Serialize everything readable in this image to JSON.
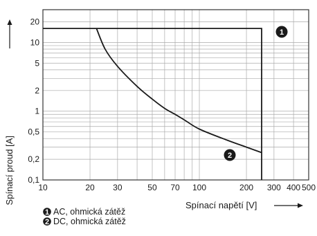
{
  "chart_data": {
    "type": "line",
    "title": "",
    "xlabel": "Spínací napětí [V]",
    "ylabel": "Spínací proud [A]",
    "x_scale": "log",
    "y_scale": "log",
    "xlim": [
      10,
      500
    ],
    "ylim": [
      0.1,
      30
    ],
    "x_ticks": [
      10,
      20,
      30,
      50,
      70,
      100,
      200,
      300,
      400,
      500
    ],
    "x_tick_labels": [
      "10",
      "20",
      "30",
      "50",
      "70",
      "100",
      "200",
      "300",
      "400",
      "500"
    ],
    "y_ticks": [
      0.1,
      0.2,
      0.5,
      1,
      2,
      5,
      10,
      20
    ],
    "y_tick_labels": [
      "0,1",
      "0,2",
      "0,5",
      "1",
      "2",
      "5",
      "10",
      "20"
    ],
    "grid": true,
    "colors": {
      "grid": "#aaaaaa",
      "frame": "#333333",
      "curve": "#1a1a1a",
      "badge": "#1a1a1a"
    },
    "series": [
      {
        "marker": "1",
        "x": [
          10,
          250,
          250
        ],
        "y": [
          16,
          16,
          0.1
        ]
      },
      {
        "marker": "2",
        "x": [
          22,
          25,
          30,
          40,
          50,
          60,
          70,
          80,
          100,
          150,
          200,
          250
        ],
        "y": [
          16,
          8,
          4.5,
          2.3,
          1.5,
          1.1,
          0.9,
          0.75,
          0.55,
          0.38,
          0.3,
          0.25
        ]
      }
    ],
    "legend": [
      {
        "marker": "1",
        "label": "AC, ohmická zátěž"
      },
      {
        "marker": "2",
        "label": "DC, ohmická zátěž"
      }
    ]
  }
}
